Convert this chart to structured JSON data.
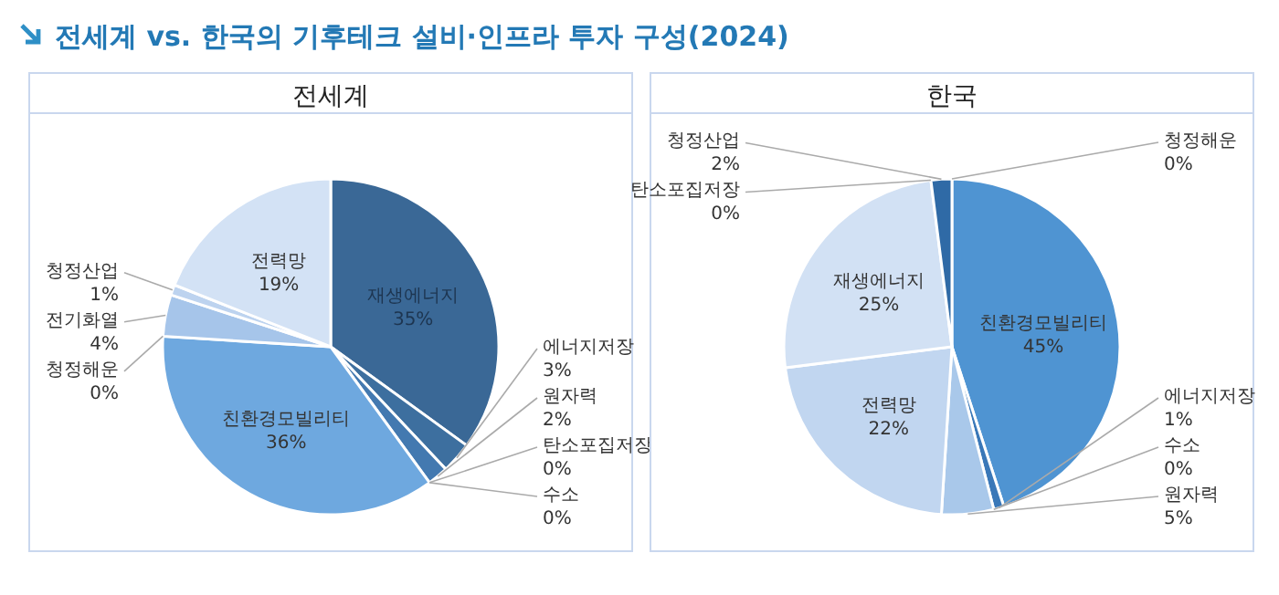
{
  "chart_data": [
    {
      "type": "pie",
      "title": "전세계",
      "annotations": [
        "전세계 vs. 한국의 기후테크 설비·인프라 투자 구성(2024)"
      ],
      "categories": [
        "재생에너지",
        "에너지저장",
        "원자력",
        "탄소포집저장",
        "수소",
        "친환경모빌리티",
        "청정해운",
        "전기화열",
        "청정산업",
        "전력망"
      ],
      "values": [
        35,
        3,
        2,
        0,
        0,
        36,
        0,
        4,
        1,
        19
      ],
      "value_labels": [
        "35%",
        "3%",
        "2%",
        "0%",
        "0%",
        "36%",
        "0%",
        "4%",
        "1%",
        "19%"
      ],
      "colors": [
        "#3a6896",
        "#3d6f9f",
        "#4379b0",
        null,
        null,
        "#6ea8df",
        null,
        "#a6c5ea",
        "#bdd3ef",
        "#d3e2f5"
      ]
    },
    {
      "type": "pie",
      "title": "한국",
      "categories": [
        "친환경모빌리티",
        "에너지저장",
        "수소",
        "원자력",
        "전력망",
        "재생에너지",
        "탄소포집저장",
        "청정산업",
        "청정해운"
      ],
      "values": [
        45,
        1,
        0,
        5,
        22,
        25,
        0,
        2,
        0
      ],
      "value_labels": [
        "45%",
        "1%",
        "0%",
        "5%",
        "22%",
        "25%",
        "0%",
        "2%",
        "0%"
      ],
      "colors": [
        "#4f94d2",
        "#3a78b8",
        null,
        "#a9c8ea",
        "#c1d6f0",
        "#d2e1f4",
        null,
        "#2f6aa6",
        null
      ]
    }
  ]
}
